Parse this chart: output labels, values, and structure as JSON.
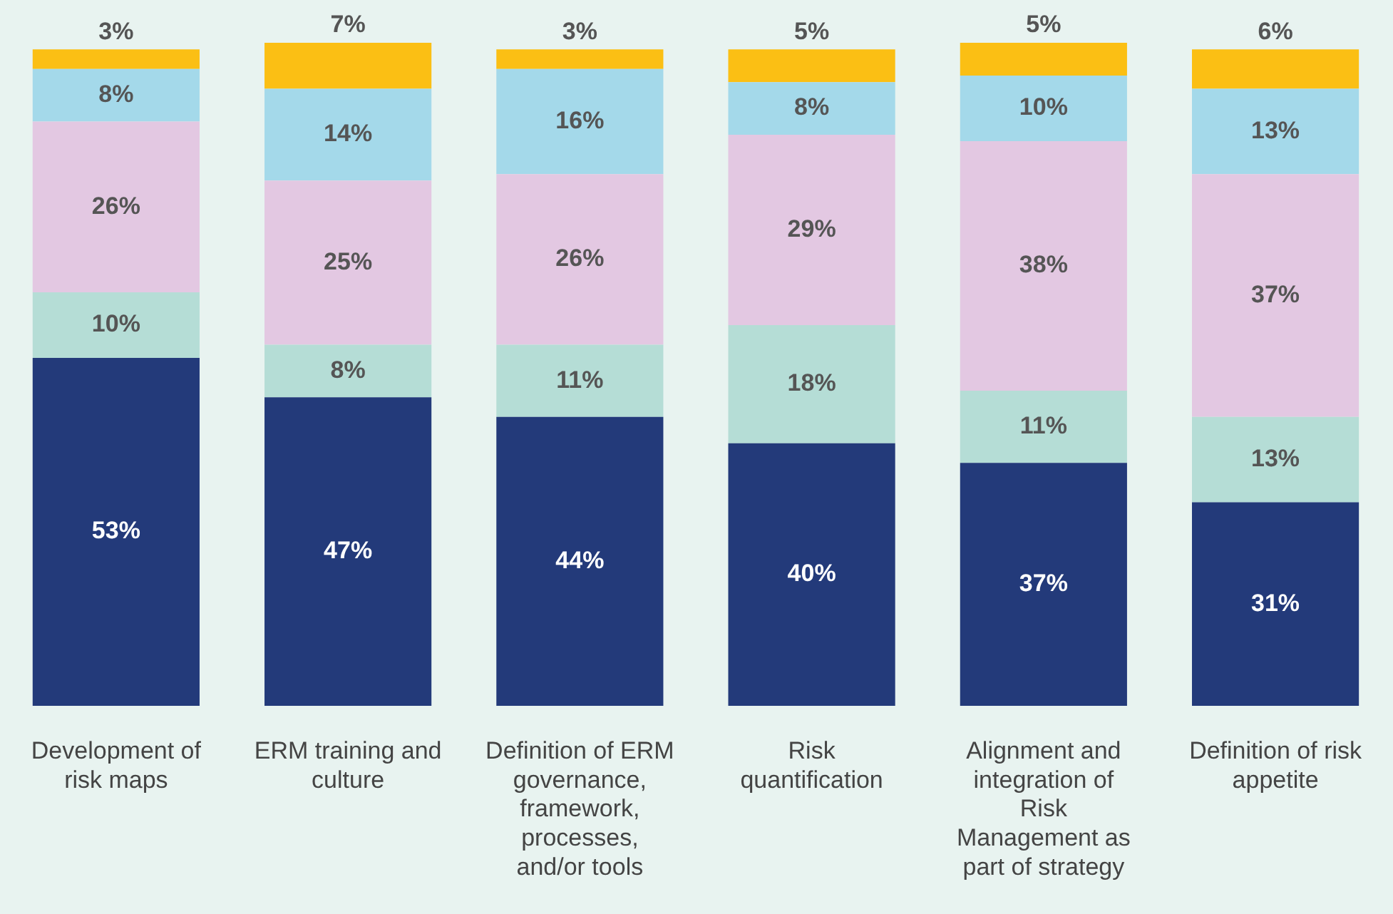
{
  "chart_data": {
    "type": "bar",
    "stacked": true,
    "grid": false,
    "legend": false,
    "categories": [
      "Development of risk maps",
      "ERM training and culture",
      "Definition of ERM governance, framework, processes, and/or tools",
      "Risk quantification",
      "Alignment and integration of Risk Management as part of strategy",
      "Definition of risk appetite"
    ],
    "series": [
      {
        "color": "#233a7a",
        "values": [
          53,
          47,
          44,
          40,
          37,
          31
        ],
        "value_labels": [
          "53%",
          "47%",
          "44%",
          "40%",
          "37%",
          "31%"
        ]
      },
      {
        "color": "#b5ddd6",
        "values": [
          10,
          8,
          11,
          18,
          11,
          13
        ],
        "value_labels": [
          "10%",
          "8%",
          "11%",
          "18%",
          "11%",
          "13%"
        ]
      },
      {
        "color": "#e3c8e2",
        "values": [
          26,
          25,
          26,
          29,
          38,
          37
        ],
        "value_labels": [
          "26%",
          "25%",
          "26%",
          "29%",
          "38%",
          "37%"
        ]
      },
      {
        "color": "#a4d9ea",
        "values": [
          8,
          14,
          16,
          8,
          10,
          13
        ],
        "value_labels": [
          "8%",
          "14%",
          "16%",
          "8%",
          "10%",
          "13%"
        ]
      },
      {
        "color": "#fbbf14",
        "values": [
          3,
          7,
          3,
          5,
          5,
          6
        ],
        "value_labels": [
          "3%",
          "7%",
          "3%",
          "5%",
          "5%",
          "6%"
        ]
      }
    ]
  }
}
